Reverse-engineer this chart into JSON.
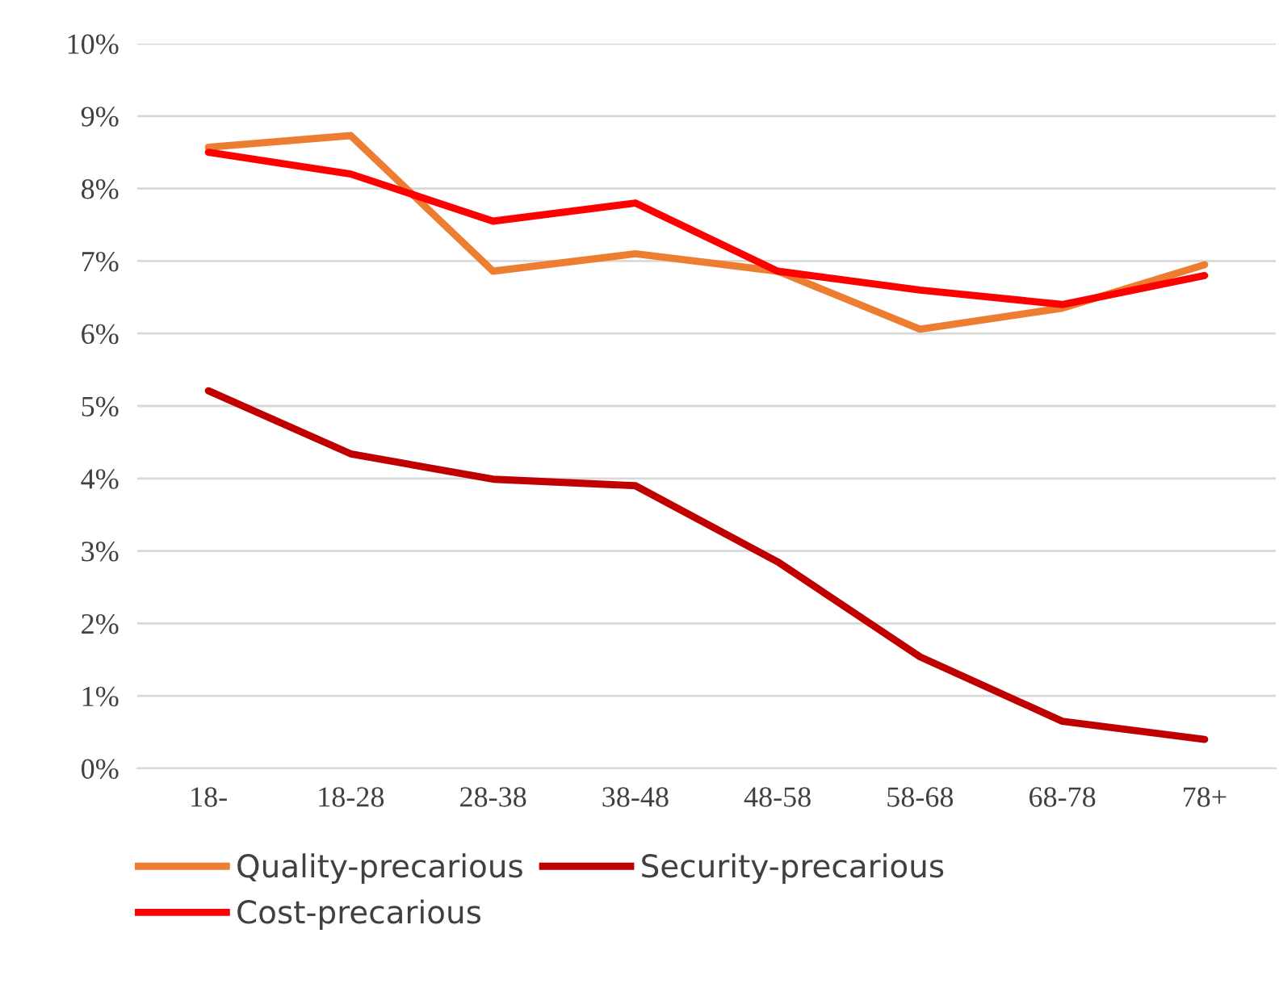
{
  "chart_data": {
    "type": "line",
    "categories": [
      "18-",
      "18-28",
      "28-38",
      "38-48",
      "48-58",
      "58-68",
      "68-78",
      "78+"
    ],
    "series": [
      {
        "name": "Quality-precarious",
        "color": "#ed7d31",
        "values": [
          8.57,
          8.73,
          6.86,
          7.1,
          6.86,
          6.06,
          6.35,
          6.95
        ]
      },
      {
        "name": "Cost-precarious",
        "color": "#ff0000",
        "values": [
          8.5,
          8.2,
          7.55,
          7.8,
          6.86,
          6.6,
          6.4,
          6.8
        ]
      },
      {
        "name": "Security-precarious",
        "color": "#c00000",
        "values": [
          5.21,
          4.34,
          3.99,
          3.9,
          2.85,
          1.54,
          0.65,
          0.4
        ]
      }
    ],
    "ylim": [
      0,
      10
    ],
    "yticks": [
      {
        "value": 0,
        "label": "0%"
      },
      {
        "value": 1,
        "label": "1%"
      },
      {
        "value": 2,
        "label": "2%"
      },
      {
        "value": 3,
        "label": "3%"
      },
      {
        "value": 4,
        "label": "4%"
      },
      {
        "value": 5,
        "label": "5%"
      },
      {
        "value": 6,
        "label": "6%"
      },
      {
        "value": 7,
        "label": "7%"
      },
      {
        "value": 8,
        "label": "8%"
      },
      {
        "value": 9,
        "label": "9%"
      },
      {
        "value": 10,
        "label": "10%"
      }
    ],
    "grid": "y",
    "legend": "bottom",
    "marker": "none",
    "line_style": "solid"
  }
}
